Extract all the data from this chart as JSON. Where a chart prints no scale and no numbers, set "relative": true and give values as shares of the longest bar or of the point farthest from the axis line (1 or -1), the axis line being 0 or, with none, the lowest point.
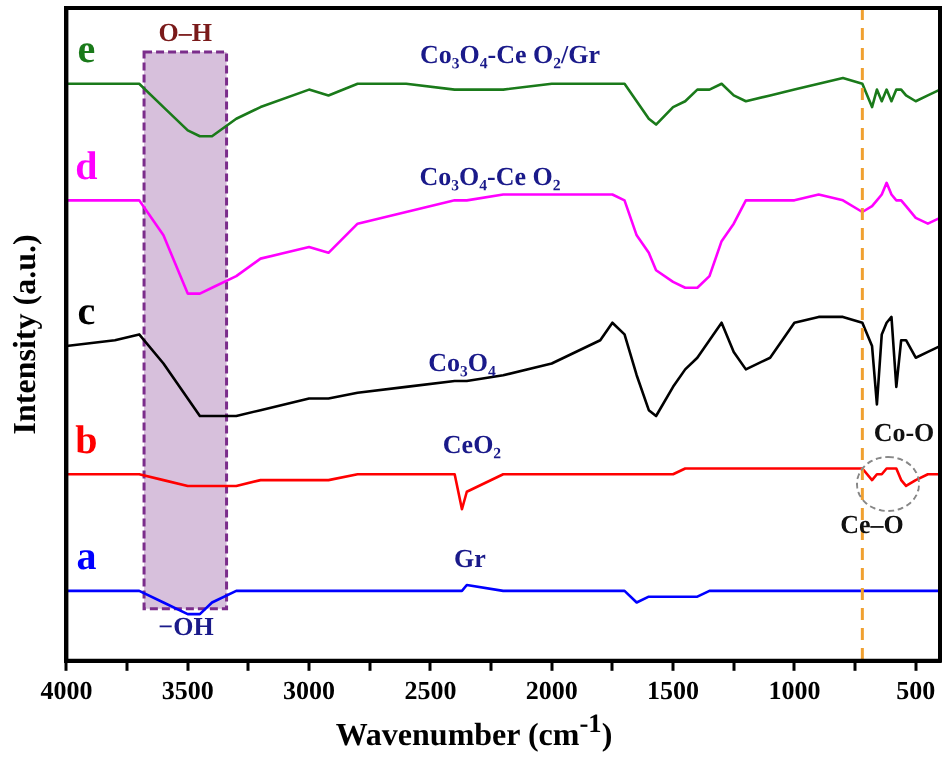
{
  "chart_data": {
    "type": "line",
    "xlabel": "Wavenumber (cm$^{-1}$)",
    "ylabel": "Intensity (a.u.)",
    "relative": true,
    "x": [
      4000,
      3800,
      3700,
      3600,
      3500,
      3450,
      3400,
      3300,
      3200,
      3000,
      2920,
      2800,
      2600,
      2400,
      2370,
      2350,
      2200,
      2000,
      1800,
      1750,
      1700,
      1650,
      1600,
      1570,
      1500,
      1450,
      1400,
      1350,
      1300,
      1250,
      1200,
      1100,
      1000,
      900,
      800,
      720,
      680,
      660,
      640,
      620,
      600,
      580,
      560,
      540,
      500,
      450,
      400
    ],
    "xlim": [
      4000,
      400
    ],
    "xticks": [
      4000,
      {
        "value": 3750,
        "label": null
      },
      3500,
      {
        "value": 3250,
        "label": null
      },
      3000,
      {
        "value": 2750,
        "label": null
      },
      2500,
      {
        "value": 2250,
        "label": null
      },
      2000,
      {
        "value": 1750,
        "label": null
      },
      1500,
      {
        "value": 1250,
        "label": null
      },
      1000,
      {
        "value": 750,
        "label": null
      },
      500
    ],
    "series": [
      {
        "name": "e",
        "color": "#1a7a1a",
        "values": [
          0.99,
          0.99,
          0.99,
          0.95,
          0.91,
          0.9,
          0.9,
          0.93,
          0.95,
          0.98,
          0.97,
          0.99,
          0.99,
          0.98,
          0.98,
          0.98,
          0.98,
          0.99,
          0.99,
          0.99,
          0.99,
          0.96,
          0.93,
          0.92,
          0.95,
          0.96,
          0.98,
          0.98,
          0.99,
          0.97,
          0.96,
          0.97,
          0.98,
          0.99,
          1.0,
          0.99,
          0.95,
          0.98,
          0.96,
          0.98,
          0.96,
          0.98,
          0.98,
          0.97,
          0.96,
          0.97,
          0.98
        ]
      },
      {
        "name": "d",
        "color": "#ff00ff",
        "values": [
          0.79,
          0.79,
          0.79,
          0.73,
          0.63,
          0.63,
          0.64,
          0.66,
          0.69,
          0.71,
          0.7,
          0.75,
          0.77,
          0.79,
          0.79,
          0.79,
          0.8,
          0.8,
          0.8,
          0.8,
          0.79,
          0.73,
          0.7,
          0.67,
          0.65,
          0.64,
          0.64,
          0.66,
          0.72,
          0.75,
          0.79,
          0.79,
          0.79,
          0.8,
          0.79,
          0.77,
          0.78,
          0.79,
          0.8,
          0.82,
          0.8,
          0.79,
          0.79,
          0.78,
          0.76,
          0.75,
          0.76
        ]
      },
      {
        "name": "c",
        "color": "#000000",
        "values": [
          0.54,
          0.55,
          0.56,
          0.51,
          0.45,
          0.42,
          0.42,
          0.42,
          0.43,
          0.45,
          0.45,
          0.46,
          0.47,
          0.48,
          0.48,
          0.48,
          0.49,
          0.51,
          0.55,
          0.58,
          0.56,
          0.49,
          0.43,
          0.42,
          0.47,
          0.5,
          0.52,
          0.55,
          0.58,
          0.53,
          0.5,
          0.52,
          0.58,
          0.59,
          0.59,
          0.58,
          0.54,
          0.44,
          0.56,
          0.58,
          0.59,
          0.47,
          0.55,
          0.55,
          0.52,
          0.53,
          0.54
        ]
      },
      {
        "name": "b",
        "color": "#ff0000",
        "values": [
          0.32,
          0.32,
          0.32,
          0.31,
          0.3,
          0.3,
          0.3,
          0.3,
          0.31,
          0.31,
          0.31,
          0.32,
          0.32,
          0.32,
          0.26,
          0.29,
          0.32,
          0.32,
          0.32,
          0.32,
          0.32,
          0.32,
          0.32,
          0.32,
          0.32,
          0.33,
          0.33,
          0.33,
          0.33,
          0.33,
          0.33,
          0.33,
          0.33,
          0.33,
          0.33,
          0.33,
          0.31,
          0.32,
          0.32,
          0.33,
          0.33,
          0.33,
          0.31,
          0.3,
          0.31,
          0.32,
          0.32
        ]
      },
      {
        "name": "a",
        "color": "#0000ff",
        "values": [
          0.12,
          0.12,
          0.12,
          0.1,
          0.08,
          0.08,
          0.1,
          0.12,
          0.12,
          0.12,
          0.12,
          0.12,
          0.12,
          0.12,
          0.12,
          0.13,
          0.12,
          0.12,
          0.12,
          0.12,
          0.12,
          0.1,
          0.11,
          0.11,
          0.11,
          0.11,
          0.11,
          0.12,
          0.12,
          0.12,
          0.12,
          0.12,
          0.12,
          0.12,
          0.12,
          0.12,
          0.12,
          0.12,
          0.12,
          0.12,
          0.12,
          0.12,
          0.12,
          0.12,
          0.12,
          0.12,
          0.12
        ]
      }
    ],
    "bands": [
      {
        "axis": "x",
        "from": 3680,
        "to": 3340,
        "label": "O–H",
        "color": "#7b2d8b"
      }
    ],
    "ref_lines": [
      {
        "axis": "x",
        "value": 720,
        "color": "#f0a030",
        "line_style": "dashed"
      }
    ],
    "annotations": [
      "Co₃O₄-Ce O₂/Gr",
      "Co₃O₄-Ce O₂",
      "Co₃O₄",
      "CeO₂",
      "Gr",
      "Co-O",
      "Ce–O",
      "−OH"
    ],
    "legend": false,
    "grid": false,
    "marker": "none",
    "line_style": "solid"
  }
}
